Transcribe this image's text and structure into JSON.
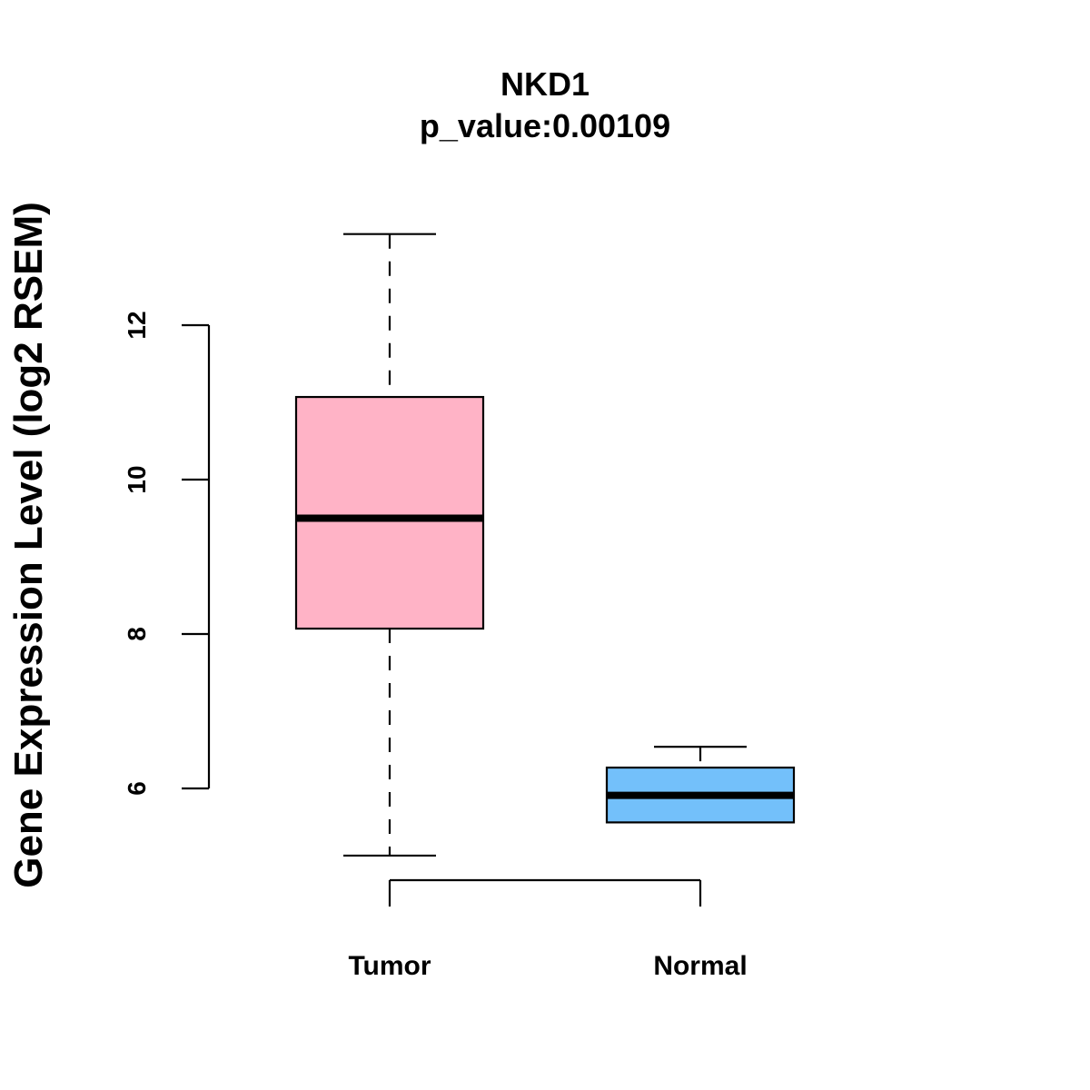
{
  "chart_data": {
    "type": "boxplot",
    "title": "NKD1",
    "subtitle": "p_value:0.00109",
    "xlabel": "",
    "ylabel": "Gene Expression Level (log2 RSEM)",
    "ylim": [
      4.4,
      14.2
    ],
    "yticks": [
      6,
      8,
      10,
      12
    ],
    "ytick_labels": [
      "6",
      "8",
      "10",
      "12"
    ],
    "grid": false,
    "groups": [
      {
        "name": "Tumor",
        "color": "#FFB3C6",
        "whisker_low": 5.13,
        "q1": 8.07,
        "median": 9.5,
        "q3": 11.07,
        "whisker_high": 13.18
      },
      {
        "name": "Normal",
        "color": "#73C0FA",
        "whisker_low": 5.56,
        "q1": 5.56,
        "median": 5.91,
        "q3": 6.27,
        "whisker_high": 6.54
      }
    ]
  }
}
